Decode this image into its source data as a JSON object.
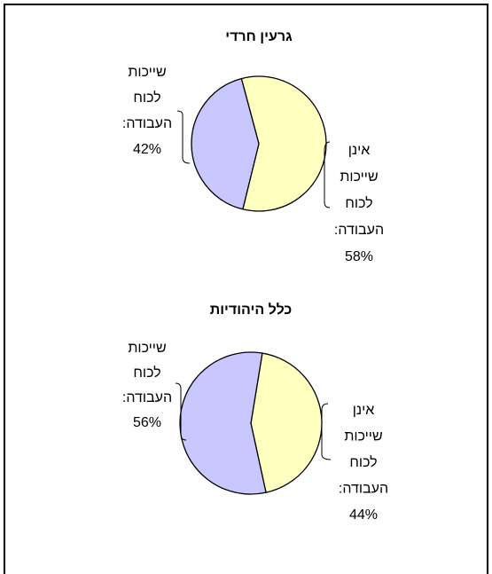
{
  "chart_data": [
    {
      "type": "pie",
      "title": "גרעין חרדי",
      "categories": [
        "אינן שייכות לכוח העבודה:",
        "שייכות לכוח העבודה:"
      ],
      "values": [
        58,
        42
      ],
      "value_labels": [
        "58%",
        "42%"
      ],
      "colors": [
        "#ffffc0",
        "#c8c8ff"
      ]
    },
    {
      "type": "pie",
      "title": "כלל היהודיות",
      "categories": [
        "אינן שייכות לכוח העבודה:",
        "שייכות לכוח העבודה:"
      ],
      "values": [
        44,
        56
      ],
      "value_labels": [
        "44%",
        "56%"
      ],
      "colors": [
        "#ffffc0",
        "#c8c8ff"
      ]
    }
  ]
}
